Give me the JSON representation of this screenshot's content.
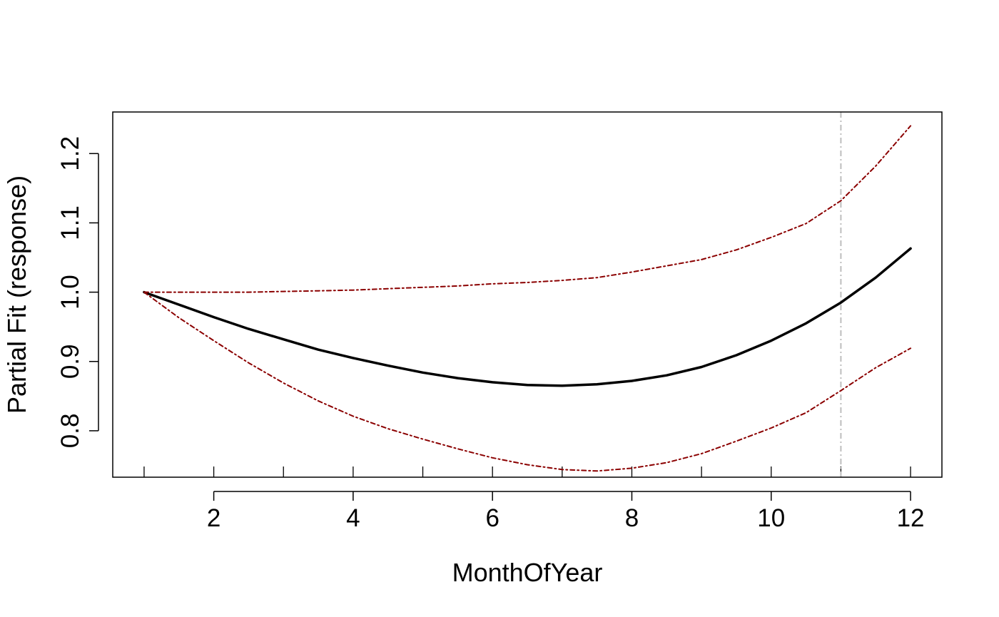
{
  "chart_data": {
    "type": "line",
    "title": "",
    "xlabel": "MonthOfYear",
    "ylabel": "Partial Fit (response)",
    "xlim": [
      0.55,
      12.45
    ],
    "ylim": [
      0.733,
      1.26
    ],
    "xticks": [
      2,
      4,
      6,
      8,
      10,
      12
    ],
    "xticks_labels": [
      "2",
      "4",
      "6",
      "8",
      "10",
      "12"
    ],
    "xminor_ticks": [
      1,
      2,
      3,
      4,
      5,
      6,
      7,
      8,
      9,
      10,
      11,
      12
    ],
    "yticks": [
      0.8,
      0.9,
      1.0,
      1.1,
      1.2
    ],
    "yticks_labels": [
      "0.8",
      "0.9",
      "1.0",
      "1.1",
      "1.2"
    ],
    "grid": false,
    "reference_line_x": 11,
    "colors": {
      "fit": "#000000",
      "ci": "#8b0000",
      "reference": "#bebebe"
    },
    "series": [
      {
        "role": "fit",
        "x": [
          1,
          1.5,
          2,
          2.5,
          3,
          3.5,
          4,
          4.5,
          5,
          5.5,
          6,
          6.5,
          7,
          7.5,
          8,
          8.5,
          9,
          9.5,
          10,
          10.5,
          11,
          11.5,
          12
        ],
        "y": [
          1.0,
          0.982,
          0.964,
          0.947,
          0.932,
          0.917,
          0.905,
          0.894,
          0.884,
          0.876,
          0.87,
          0.866,
          0.865,
          0.867,
          0.872,
          0.88,
          0.892,
          0.909,
          0.93,
          0.955,
          0.985,
          1.021,
          1.063
        ]
      },
      {
        "role": "upper",
        "x": [
          1,
          1.5,
          2,
          2.5,
          3,
          3.5,
          4,
          4.5,
          5,
          5.5,
          6,
          6.5,
          7,
          7.5,
          8,
          8.5,
          9,
          9.5,
          10,
          10.5,
          11,
          11.5,
          12
        ],
        "y": [
          1.0,
          1.0,
          1.0,
          1.0,
          1.001,
          1.002,
          1.003,
          1.005,
          1.007,
          1.009,
          1.012,
          1.014,
          1.017,
          1.021,
          1.029,
          1.038,
          1.047,
          1.061,
          1.079,
          1.099,
          1.132,
          1.182,
          1.24
        ]
      },
      {
        "role": "lower",
        "x": [
          1,
          1.5,
          2,
          2.5,
          3,
          3.5,
          4,
          4.5,
          5,
          5.5,
          6,
          6.5,
          7,
          7.5,
          8,
          8.5,
          9,
          9.5,
          10,
          10.5,
          11,
          11.5,
          12
        ],
        "y": [
          1.0,
          0.963,
          0.93,
          0.898,
          0.869,
          0.843,
          0.821,
          0.803,
          0.788,
          0.774,
          0.761,
          0.751,
          0.744,
          0.742,
          0.746,
          0.754,
          0.767,
          0.785,
          0.804,
          0.826,
          0.858,
          0.891,
          0.919
        ]
      }
    ]
  }
}
